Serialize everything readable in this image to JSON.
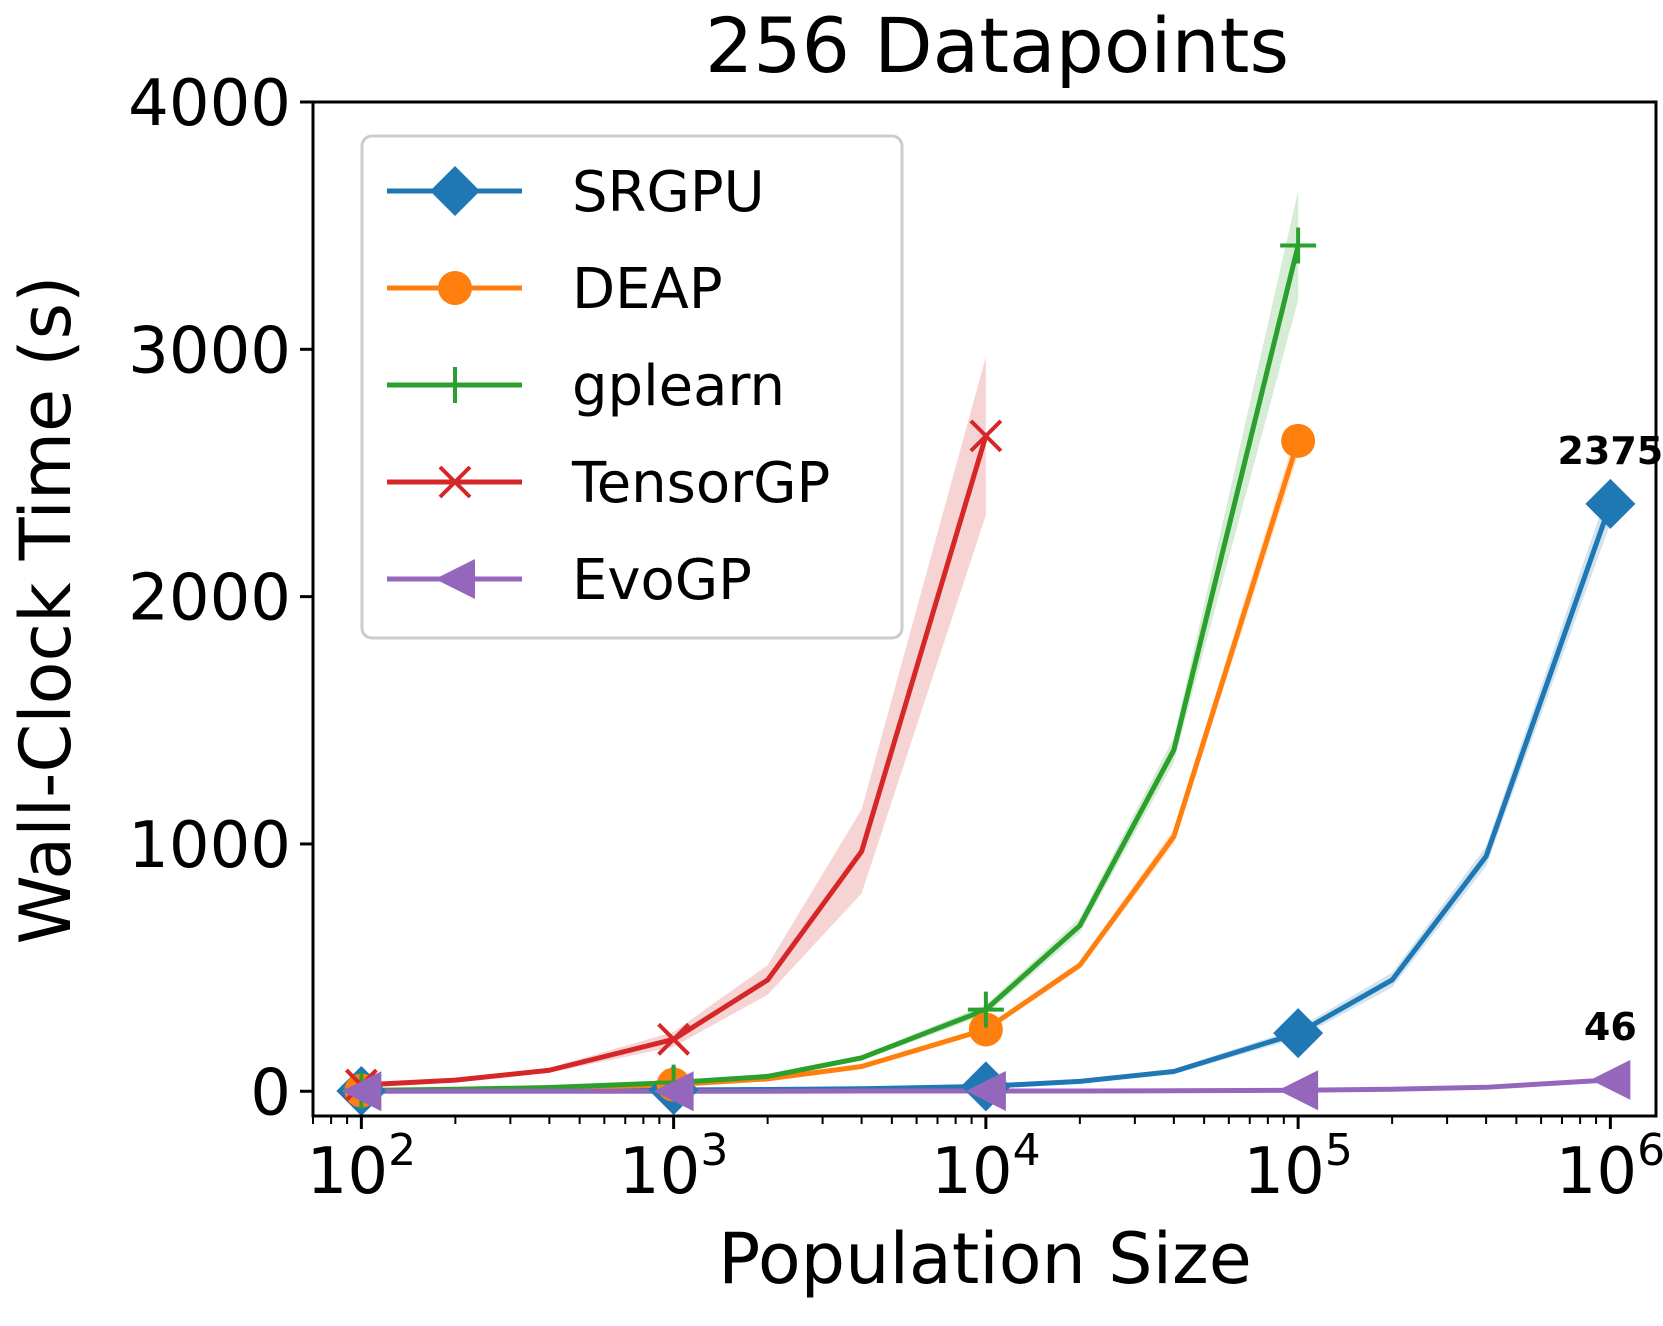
{
  "chart_data": {
    "type": "line",
    "title": "256 Datapoints",
    "xlabel": "Population Size",
    "ylabel": "Wall-Clock Time (s)",
    "x_scale": "log",
    "xlim": [
      70,
      1400000
    ],
    "ylim": [
      -100,
      4000
    ],
    "x_ticks": [
      {
        "value": 100,
        "base": "10",
        "exp": "2"
      },
      {
        "value": 1000,
        "base": "10",
        "exp": "3"
      },
      {
        "value": 10000,
        "base": "10",
        "exp": "4"
      },
      {
        "value": 100000,
        "base": "10",
        "exp": "5"
      },
      {
        "value": 1000000,
        "base": "10",
        "exp": "6"
      }
    ],
    "y_ticks": [
      {
        "value": 0,
        "label": "0"
      },
      {
        "value": 1000,
        "label": "1000"
      },
      {
        "value": 2000,
        "label": "2000"
      },
      {
        "value": 3000,
        "label": "3000"
      },
      {
        "value": 4000,
        "label": "4000"
      }
    ],
    "grid": false,
    "legend_position": "top-left",
    "series": [
      {
        "name": "SRGPU",
        "color": "#1f77b4",
        "marker": "diamond",
        "x": [
          100,
          200,
          400,
          1000,
          2000,
          4000,
          10000,
          20000,
          40000,
          100000,
          200000,
          400000,
          1000000
        ],
        "y": [
          1,
          2,
          3,
          5,
          7,
          10,
          20,
          40,
          80,
          235,
          450,
          950,
          2375
        ],
        "band": [
          0,
          0,
          0,
          0,
          0,
          0,
          2,
          5,
          10,
          20,
          30,
          40,
          80
        ],
        "marker_at": [
          100,
          1000,
          10000,
          100000,
          1000000
        ]
      },
      {
        "name": "DEAP",
        "color": "#ff7f0e",
        "marker": "circle",
        "x": [
          100,
          200,
          400,
          1000,
          2000,
          4000,
          10000,
          20000,
          40000,
          100000
        ],
        "y": [
          3,
          6,
          11,
          27,
          50,
          100,
          250,
          510,
          1030,
          2630
        ],
        "band": [
          0,
          0,
          1,
          2,
          3,
          5,
          10,
          15,
          30,
          60
        ],
        "marker_at": [
          100,
          1000,
          10000,
          100000
        ]
      },
      {
        "name": "gplearn",
        "color": "#2ca02c",
        "marker": "plus",
        "x": [
          100,
          200,
          400,
          1000,
          2000,
          4000,
          10000,
          20000,
          40000,
          100000
        ],
        "y": [
          3,
          8,
          15,
          35,
          60,
          135,
          330,
          670,
          1380,
          3420
        ],
        "band": [
          0,
          1,
          2,
          3,
          5,
          10,
          20,
          30,
          50,
          220
        ],
        "marker_at": [
          100,
          1000,
          10000,
          100000
        ]
      },
      {
        "name": "TensorGP",
        "color": "#d62728",
        "marker": "x",
        "x": [
          100,
          200,
          400,
          1000,
          2000,
          4000,
          10000
        ],
        "y": [
          25,
          45,
          85,
          210,
          450,
          970,
          2650
        ],
        "band": [
          5,
          8,
          10,
          30,
          60,
          170,
          320
        ],
        "marker_at": [
          100,
          1000,
          10000
        ]
      },
      {
        "name": "EvoGP",
        "color": "#9467bd",
        "marker": "triangle-left",
        "x": [
          100,
          200,
          400,
          1000,
          2000,
          4000,
          10000,
          20000,
          40000,
          100000,
          200000,
          400000,
          1000000
        ],
        "y": [
          0,
          0,
          0,
          0,
          0,
          1,
          1,
          1,
          2,
          4,
          8,
          16,
          46
        ],
        "band": [
          0,
          0,
          0,
          0,
          0,
          0,
          0,
          0,
          0,
          0,
          1,
          1,
          2
        ],
        "marker_at": [
          100,
          1000,
          10000,
          100000,
          1000000
        ]
      }
    ],
    "annotations": [
      {
        "text": "2375",
        "x": 1000000,
        "y": 2375,
        "series": "SRGPU"
      },
      {
        "text": "46",
        "x": 1000000,
        "y": 46,
        "series": "EvoGP"
      }
    ]
  }
}
